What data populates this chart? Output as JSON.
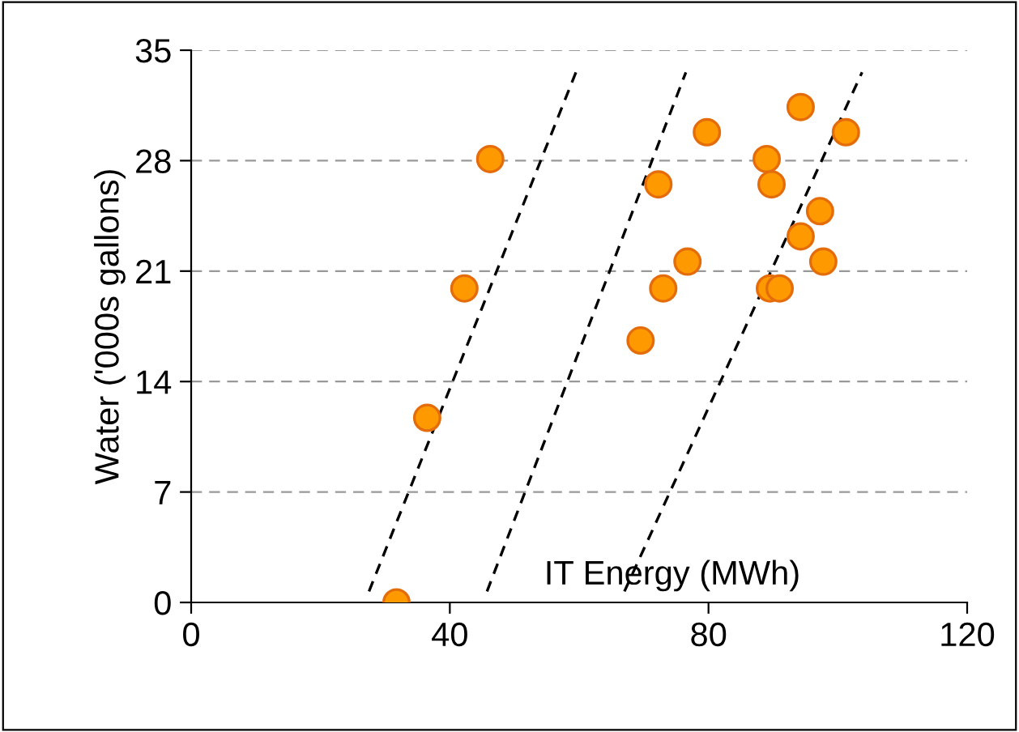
{
  "chart_data": {
    "type": "scatter",
    "xlabel": "IT Energy (MWh)",
    "ylabel": "Water ('000s gallons)",
    "xlim": [
      0,
      120
    ],
    "xticks": [
      0,
      40,
      80,
      120
    ],
    "ylim": [
      0,
      35
    ],
    "yticks": [
      0,
      7,
      14,
      21,
      28,
      35
    ],
    "grid": "y",
    "series": [
      {
        "color": "#ff9900",
        "marker": "circle",
        "x": [
          31.75,
          36.5,
          42.25,
          46.25,
          69.5,
          73,
          72.25,
          76.75,
          79.75,
          89,
          89.75,
          89.5,
          91,
          94.25,
          94.25,
          97.25,
          97.75,
          101.25
        ],
        "values": [
          0,
          11.7,
          19.9,
          28.1,
          16.6,
          19.9,
          26.5,
          21.6,
          29.8,
          28.1,
          26.5,
          19.9,
          19.9,
          31.4,
          23.2,
          24.8,
          21.6,
          29.8
        ]
      },
      {
        "type": "line",
        "color": "#000000",
        "marker": "none",
        "line_style": "dashed",
        "x": [
          27.5,
          59.5
        ],
        "values": [
          0.7,
          33.6
        ]
      },
      {
        "type": "line",
        "color": "#000000",
        "marker": "none",
        "line_style": "dashed",
        "x": [
          45.75,
          76.5
        ],
        "values": [
          0.7,
          33.6
        ]
      },
      {
        "type": "line",
        "color": "#000000",
        "marker": "none",
        "line_style": "dashed",
        "x": [
          67,
          103.75
        ],
        "values": [
          0.7,
          33.6
        ]
      }
    ]
  }
}
